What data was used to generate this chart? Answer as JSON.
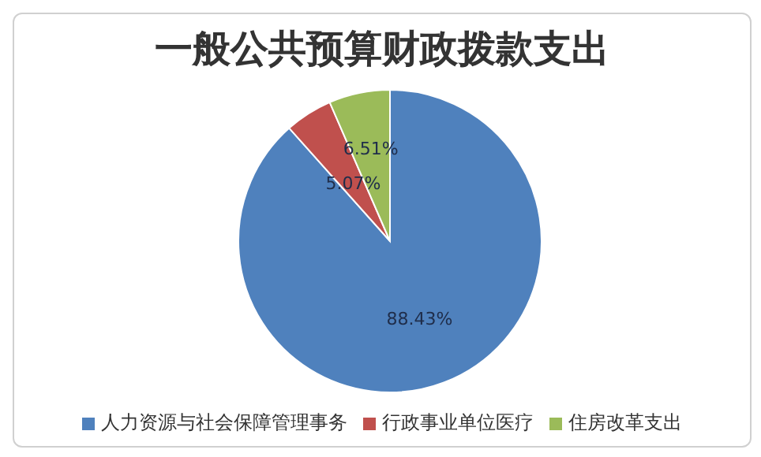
{
  "chart_data": {
    "type": "pie",
    "title": "一般公共预算财政拨款支出",
    "categories": [
      "人力资源与社会保障管理事务",
      "行政事业单位医疗",
      "住房改革支出"
    ],
    "values": [
      88.43,
      5.07,
      6.51
    ],
    "value_labels": [
      "88.43%",
      "5.07%",
      "6.51%"
    ],
    "colors": [
      "#4f81bd",
      "#c0504d",
      "#9bbb59"
    ],
    "legend": "bottom"
  }
}
